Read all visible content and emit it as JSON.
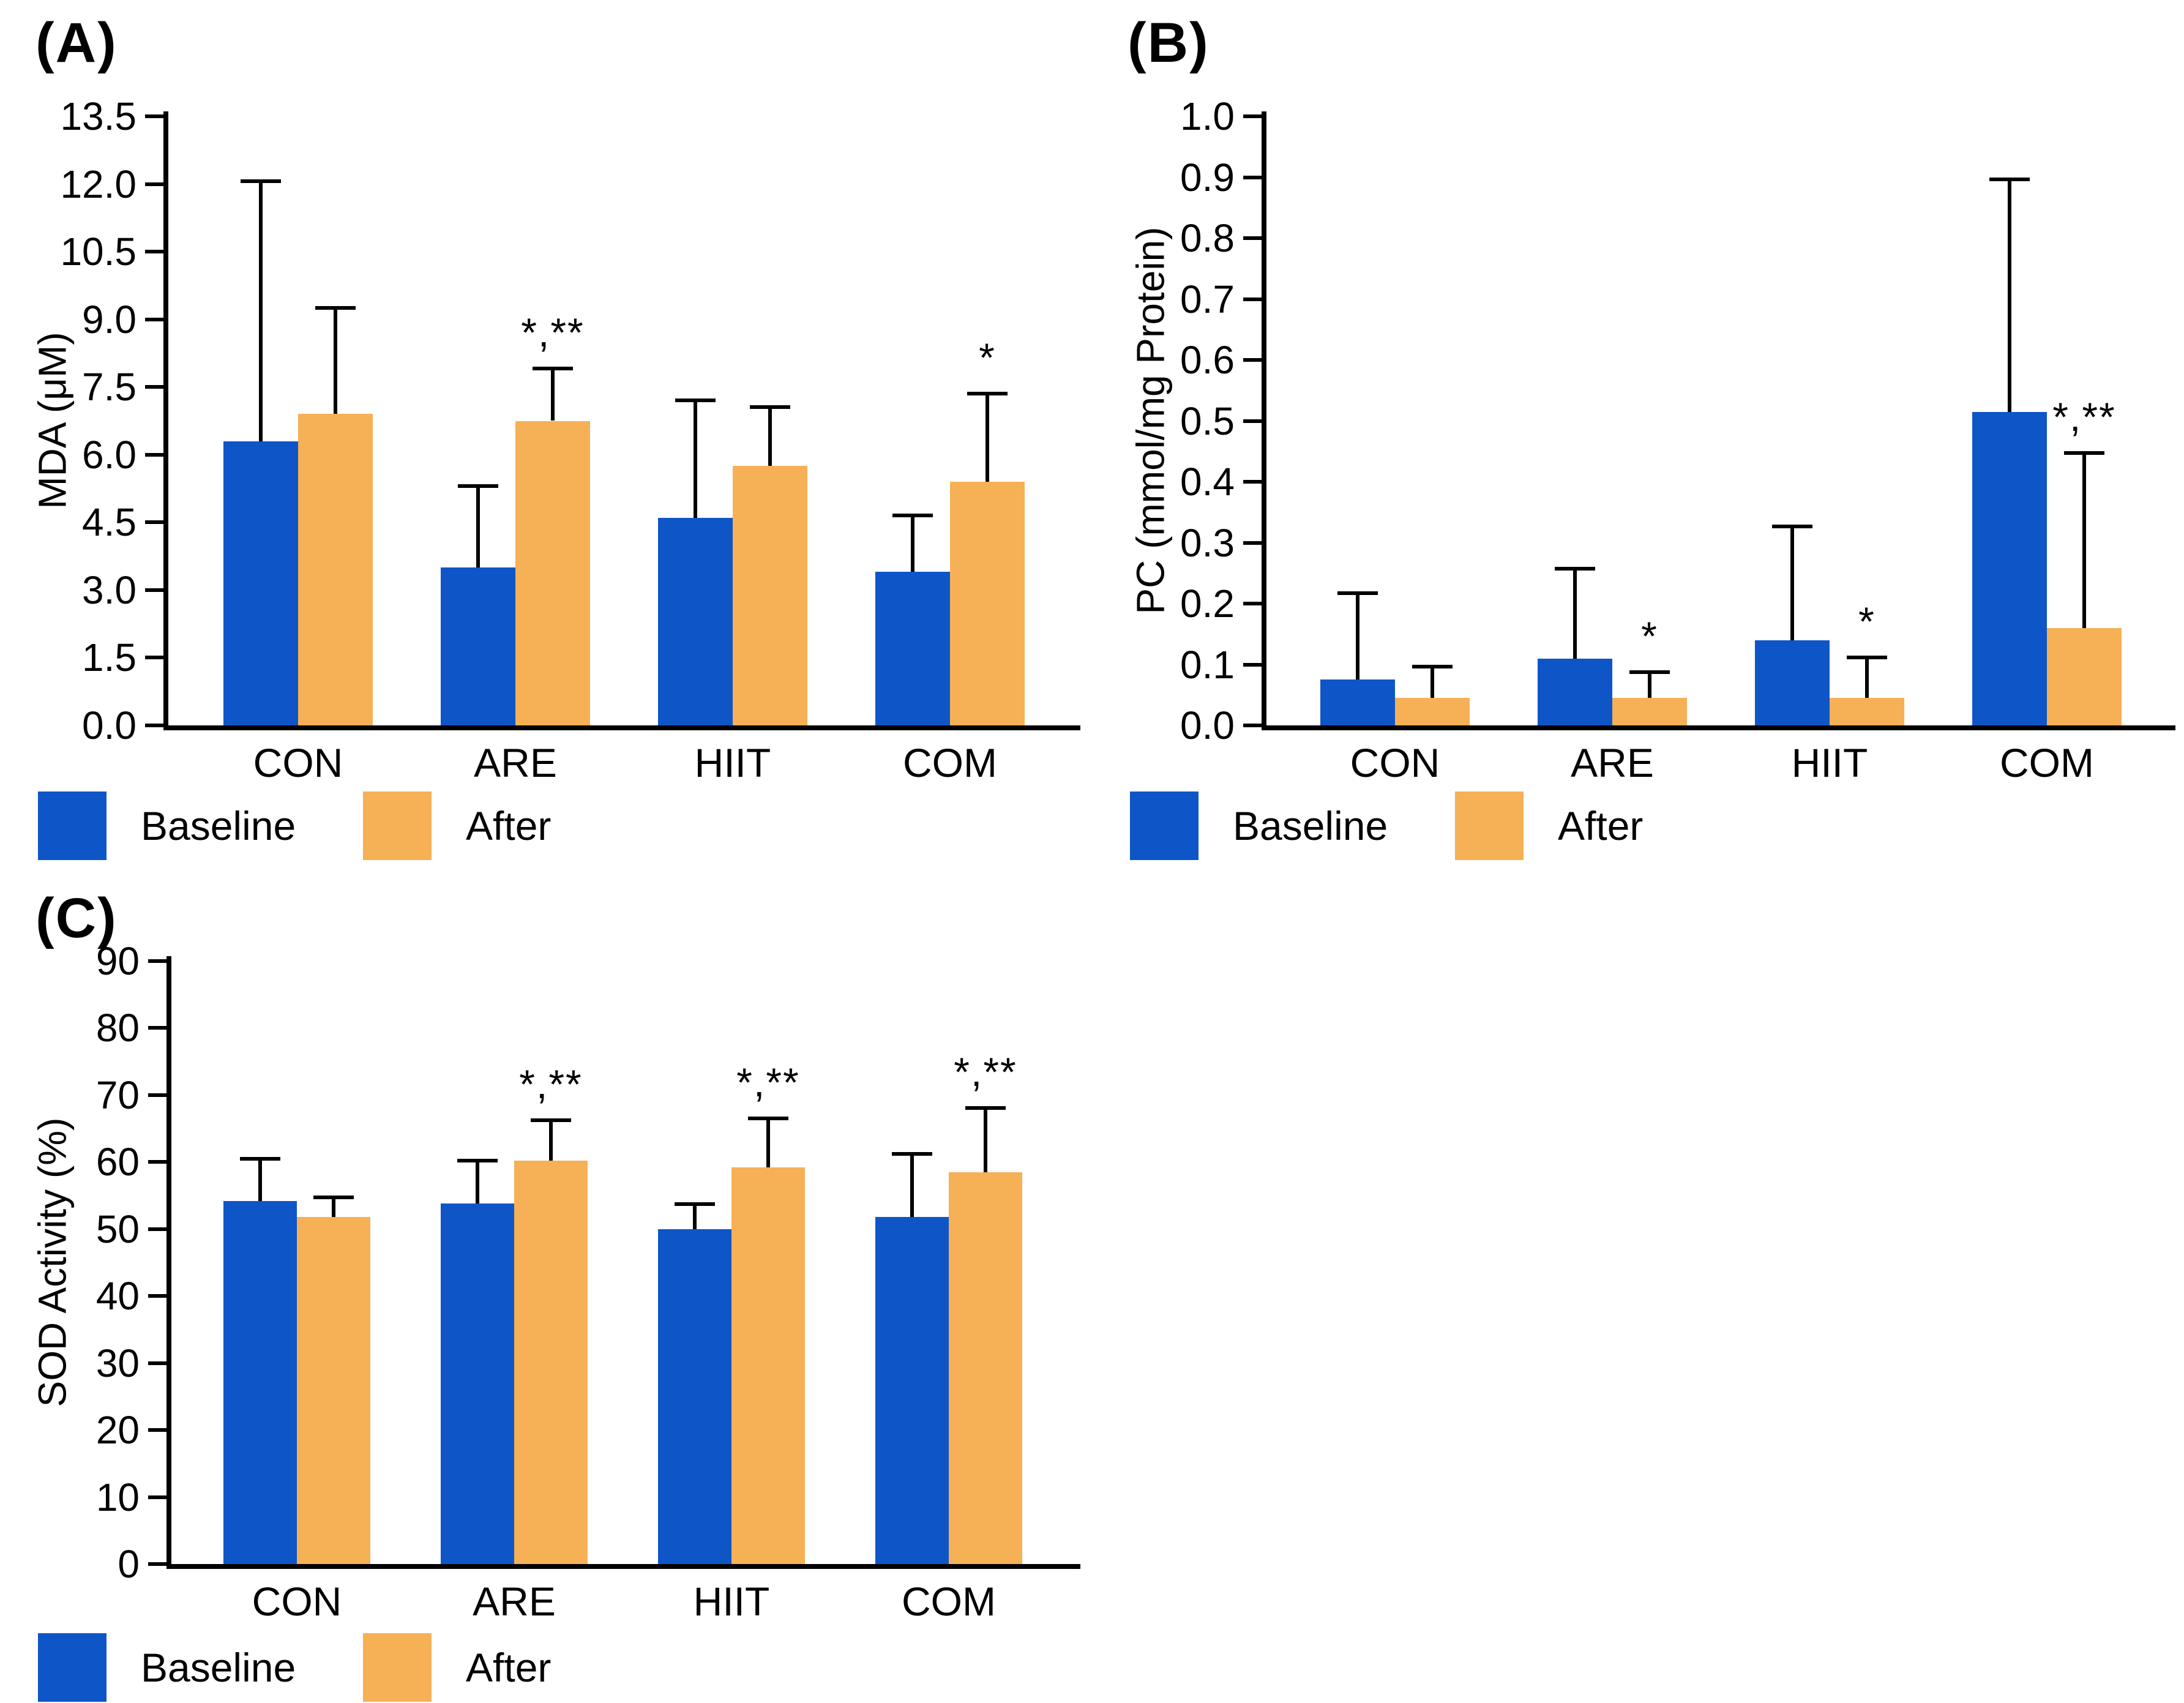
{
  "legend": {
    "baseline": "Baseline",
    "after": "After"
  },
  "colors": {
    "baseline": "#0E56C8",
    "after": "#F6B056",
    "axis": "#000000"
  },
  "chart_data": [
    {
      "type": "bar",
      "panel_label": "(A)",
      "title": "",
      "xlabel": "",
      "ylabel": "MDA (μM)",
      "categories": [
        "CON",
        "ARE",
        "HIIT",
        "COM"
      ],
      "series": [
        {
          "name": "Baseline",
          "values": [
            6.3,
            3.5,
            4.6,
            3.4
          ],
          "error_top": [
            12.1,
            5.35,
            7.25,
            4.7
          ]
        },
        {
          "name": "After",
          "values": [
            6.9,
            6.75,
            5.75,
            5.4
          ],
          "error_top": [
            9.3,
            7.95,
            7.1,
            7.4
          ]
        }
      ],
      "annotations": [
        {
          "category": "ARE",
          "series": "After",
          "text": "*,**"
        },
        {
          "category": "COM",
          "series": "After",
          "text": "*"
        }
      ],
      "ylim": [
        0,
        13.5
      ],
      "ytick_step": 1.5,
      "ytick_labels": [
        "0.0",
        "1.5",
        "3.0",
        "4.5",
        "6.0",
        "7.5",
        "9.0",
        "10.5",
        "12.0",
        "13.5"
      ],
      "grid": false,
      "legend_position": "bottom"
    },
    {
      "type": "bar",
      "panel_label": "(B)",
      "title": "",
      "xlabel": "",
      "ylabel": "PC (mmol/mg Protein)",
      "categories": [
        "CON",
        "ARE",
        "HIIT",
        "COM"
      ],
      "series": [
        {
          "name": "Baseline",
          "values": [
            0.075,
            0.11,
            0.14,
            0.515
          ],
          "error_top": [
            0.22,
            0.26,
            0.33,
            0.9
          ]
        },
        {
          "name": "After",
          "values": [
            0.045,
            0.045,
            0.045,
            0.16
          ],
          "error_top": [
            0.1,
            0.09,
            0.115,
            0.45
          ]
        }
      ],
      "annotations": [
        {
          "category": "ARE",
          "series": "After",
          "text": "*"
        },
        {
          "category": "HIIT",
          "series": "After",
          "text": "*"
        },
        {
          "category": "COM",
          "series": "After",
          "text": "*,**"
        }
      ],
      "ylim": [
        0,
        1.0
      ],
      "ytick_step": 0.1,
      "ytick_labels": [
        "0.0",
        "0.1",
        "0.2",
        "0.3",
        "0.4",
        "0.5",
        "0.6",
        "0.7",
        "0.8",
        "0.9",
        "1.0"
      ],
      "grid": false,
      "legend_position": "bottom"
    },
    {
      "type": "bar",
      "panel_label": "(C)",
      "title": "",
      "xlabel": "",
      "ylabel": "SOD Activity (%)",
      "categories": [
        "CON",
        "ARE",
        "HIIT",
        "COM"
      ],
      "series": [
        {
          "name": "Baseline",
          "values": [
            54.2,
            53.8,
            50.0,
            51.8
          ],
          "error_top": [
            60.8,
            60.5,
            54.0,
            61.5
          ]
        },
        {
          "name": "After",
          "values": [
            51.8,
            60.2,
            59.2,
            58.5
          ],
          "error_top": [
            55.0,
            66.5,
            66.8,
            68.3
          ]
        }
      ],
      "annotations": [
        {
          "category": "ARE",
          "series": "After",
          "text": "*,**"
        },
        {
          "category": "HIIT",
          "series": "After",
          "text": "*,**"
        },
        {
          "category": "COM",
          "series": "After",
          "text": "*,**"
        }
      ],
      "ylim": [
        0,
        90
      ],
      "ytick_step": 10,
      "ytick_labels": [
        "0",
        "10",
        "20",
        "30",
        "40",
        "50",
        "60",
        "70",
        "80",
        "90"
      ],
      "grid": false,
      "legend_position": "bottom"
    }
  ]
}
